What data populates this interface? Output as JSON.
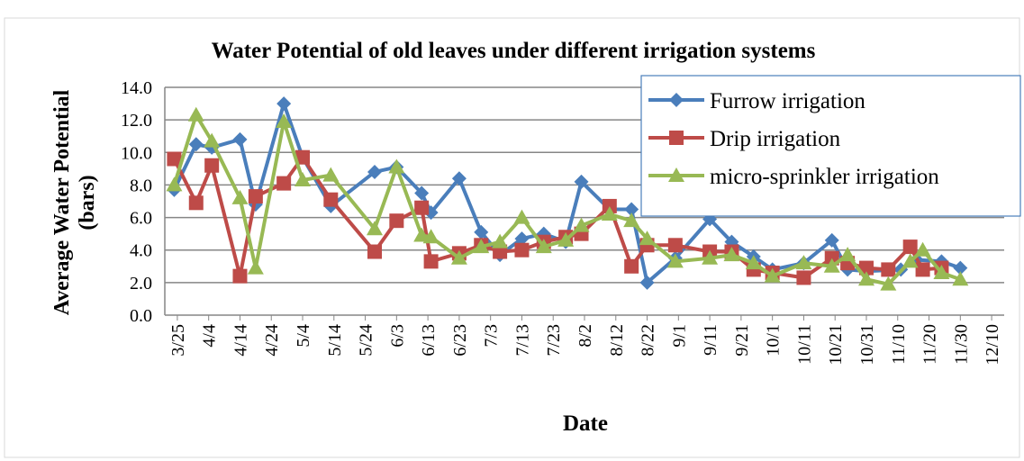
{
  "chart_data": {
    "type": "line",
    "title": "Water Potential of old leaves under different irrigation systems",
    "x_label": "Date",
    "y_label": [
      "Average Water Potential",
      "(bars)"
    ],
    "xlim": [
      "3/21",
      "12/14"
    ],
    "xticks": [
      "3/25",
      "4/4",
      "4/14",
      "4/24",
      "5/4",
      "5/14",
      "5/24",
      "6/3",
      "6/13",
      "6/23",
      "7/3",
      "7/13",
      "7/23",
      "8/2",
      "8/12",
      "8/22",
      "9/1",
      "9/11",
      "9/21",
      "10/1",
      "10/11",
      "10/21",
      "10/31",
      "11/10",
      "11/20",
      "11/30",
      "12/10"
    ],
    "ylim": [
      0,
      14
    ],
    "yticks": [
      {
        "value": 0,
        "label": "0.0"
      },
      {
        "value": 2,
        "label": "2.0"
      },
      {
        "value": 4,
        "label": "4.0"
      },
      {
        "value": 6,
        "label": "6.0"
      },
      {
        "value": 8,
        "label": "8.0"
      },
      {
        "value": 10,
        "label": "10.0"
      },
      {
        "value": 12,
        "label": "12.0"
      },
      {
        "value": 14,
        "label": "14.0"
      }
    ],
    "grid": true,
    "legend": "upper right",
    "series": [
      {
        "name": "Furrow irrigation",
        "color": "#4a7ebb",
        "marker": "diamond",
        "x": [
          "3/24",
          "3/31",
          "4/5",
          "4/14",
          "4/19",
          "4/28",
          "5/4",
          "5/13",
          "5/27",
          "6/3",
          "6/11",
          "6/14",
          "6/23",
          "6/30",
          "7/6",
          "7/13",
          "7/20",
          "7/27",
          "8/1",
          "8/10",
          "8/17",
          "8/22",
          "8/31",
          "9/11",
          "9/18",
          "9/25",
          "10/1",
          "10/11",
          "10/20",
          "10/25",
          "10/31",
          "11/11",
          "11/16",
          "11/24",
          "11/30"
        ],
        "values": [
          7.7,
          10.5,
          10.3,
          10.8,
          6.8,
          13.0,
          9.7,
          6.7,
          8.8,
          9.1,
          7.5,
          6.3,
          8.4,
          5.1,
          3.7,
          4.7,
          5.0,
          4.5,
          8.2,
          6.5,
          6.5,
          2.0,
          3.5,
          5.9,
          4.5,
          3.6,
          2.8,
          3.2,
          4.6,
          2.8,
          2.7,
          2.8,
          3.4,
          3.3,
          2.9
        ]
      },
      {
        "name": "Drip irrigation",
        "color": "#be4b48",
        "marker": "square",
        "x": [
          "3/24",
          "3/31",
          "4/5",
          "4/14",
          "4/19",
          "4/28",
          "5/4",
          "5/13",
          "5/27",
          "6/3",
          "6/11",
          "6/14",
          "6/23",
          "6/30",
          "7/6",
          "7/13",
          "7/20",
          "7/27",
          "8/1",
          "8/10",
          "8/17",
          "8/22",
          "8/31",
          "9/11",
          "9/18",
          "9/25",
          "10/1",
          "10/11",
          "10/20",
          "10/25",
          "10/31",
          "11/7",
          "11/14",
          "11/18",
          "11/24"
        ],
        "values": [
          9.6,
          6.9,
          9.2,
          2.4,
          7.3,
          8.1,
          9.7,
          7.1,
          3.9,
          5.8,
          6.6,
          3.3,
          3.8,
          4.3,
          3.9,
          4.0,
          4.5,
          4.8,
          5.0,
          6.7,
          3.0,
          4.3,
          4.3,
          3.9,
          3.9,
          2.8,
          2.6,
          2.3,
          3.5,
          3.2,
          2.9,
          2.8,
          4.2,
          2.8,
          2.9
        ]
      },
      {
        "name": "micro-sprinkler irrigation",
        "color": "#98b954",
        "marker": "triangle",
        "x": [
          "3/24",
          "3/31",
          "4/5",
          "4/14",
          "4/19",
          "4/28",
          "5/4",
          "5/13",
          "5/27",
          "6/3",
          "6/11",
          "6/14",
          "6/23",
          "6/30",
          "7/6",
          "7/13",
          "7/20",
          "7/27",
          "8/1",
          "8/10",
          "8/17",
          "8/22",
          "8/31",
          "9/11",
          "9/18",
          "9/25",
          "10/1",
          "10/11",
          "10/20",
          "10/25",
          "10/31",
          "11/7",
          "11/14",
          "11/18",
          "11/24",
          "11/30"
        ],
        "values": [
          8.0,
          12.3,
          10.7,
          7.2,
          2.9,
          11.9,
          8.3,
          8.6,
          5.3,
          9.1,
          4.9,
          4.8,
          3.5,
          4.2,
          4.5,
          6.0,
          4.2,
          4.6,
          5.5,
          6.2,
          5.8,
          4.7,
          3.3,
          3.5,
          3.7,
          3.2,
          2.4,
          3.2,
          3.0,
          3.7,
          2.2,
          1.9,
          3.3,
          4.0,
          2.6,
          2.2
        ]
      }
    ]
  }
}
